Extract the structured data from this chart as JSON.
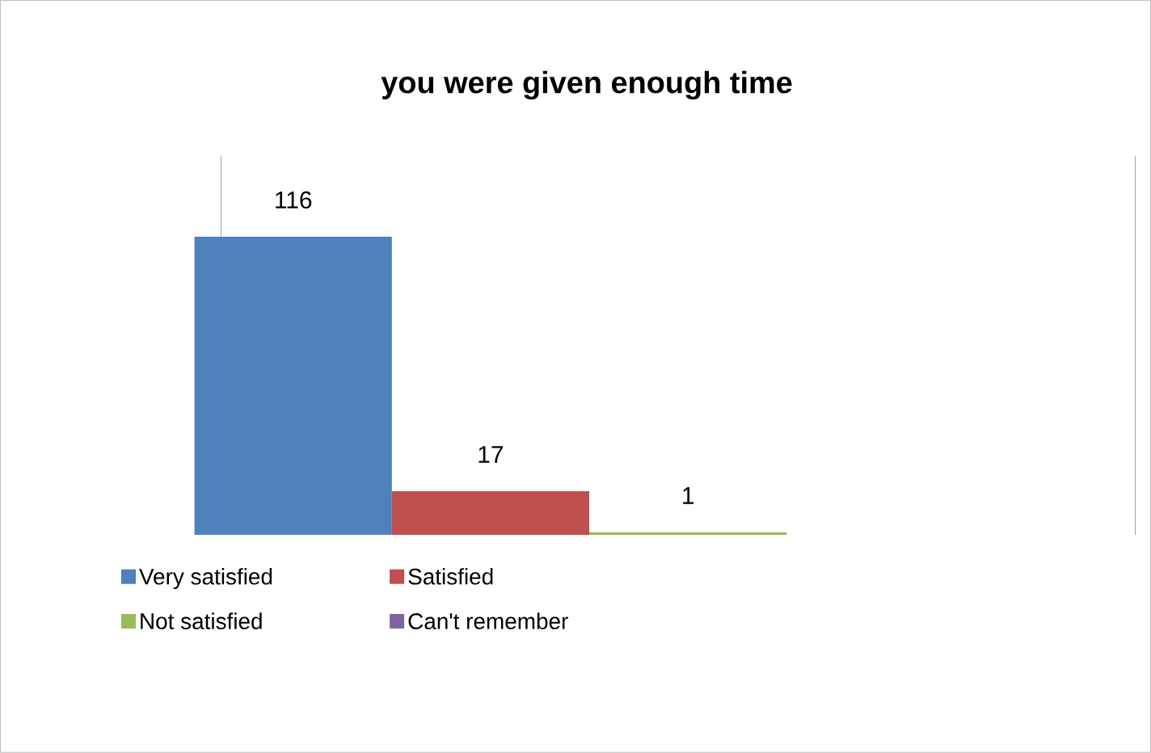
{
  "chart_data": {
    "type": "bar",
    "title": "you were given enough time",
    "categories": [
      null
    ],
    "series": [
      {
        "name": "Very satisfied",
        "color": "#4f81bd",
        "values": [
          116
        ]
      },
      {
        "name": "Satisfied",
        "color": "#c0504d",
        "values": [
          17
        ]
      },
      {
        "name": "Not satisfied",
        "color": "#9bbb59",
        "values": [
          1
        ]
      },
      {
        "name": "Can't remember",
        "color": "#8064a2",
        "values": [
          null
        ]
      }
    ],
    "data_labels": true,
    "legend": "bottom"
  }
}
